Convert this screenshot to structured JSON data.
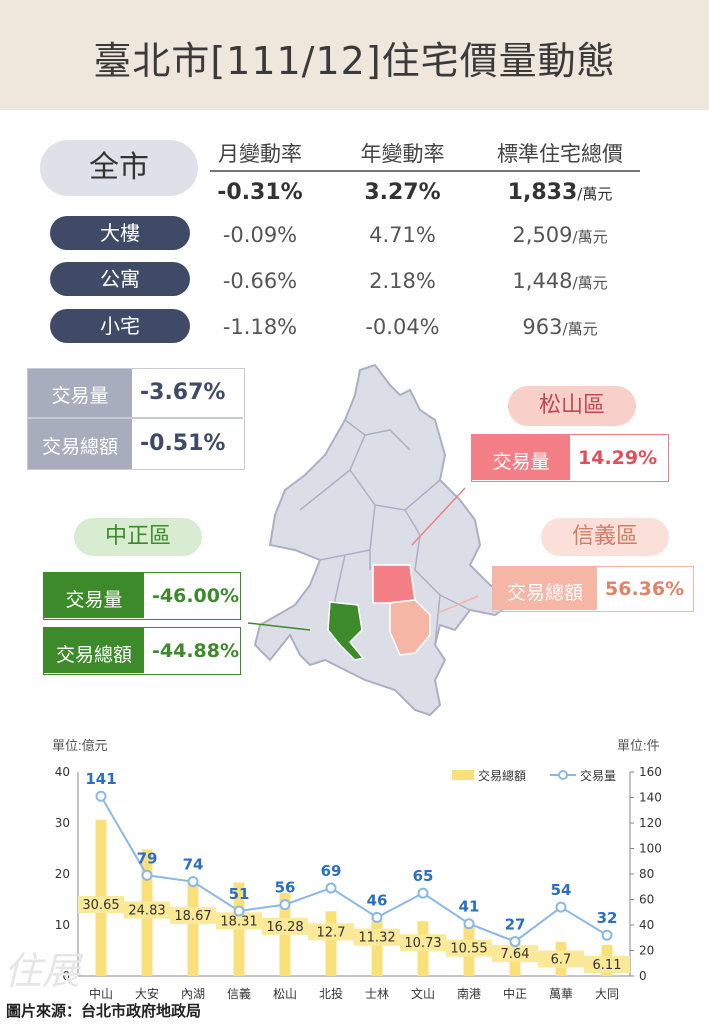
{
  "header": {
    "title": "臺北市[111/12]住宅價量動態"
  },
  "summary": {
    "columns": [
      "月變動率",
      "年變動率",
      "標準住宅總價"
    ],
    "unit_wan": "/萬元",
    "rows": [
      {
        "name": "全市",
        "monthly": "-0.31%",
        "yearly": "3.27%",
        "price": "1,833"
      },
      {
        "name": "大樓",
        "monthly": "-0.09%",
        "yearly": "4.71%",
        "price": "2,509"
      },
      {
        "name": "公寓",
        "monthly": "-0.66%",
        "yearly": "2.18%",
        "price": "1,448"
      },
      {
        "name": "小宅",
        "monthly": "-1.18%",
        "yearly": "-0.04%",
        "price": "963"
      }
    ]
  },
  "city_stats": {
    "volume_label": "交易量",
    "volume_value": "-3.67%",
    "amount_label": "交易總額",
    "amount_value": "-0.51%"
  },
  "songshan": {
    "name": "松山區",
    "label": "交易量",
    "value": "14.29%",
    "color": "#f47f86"
  },
  "xinyi": {
    "name": "信義區",
    "label": "交易總額",
    "value": "56.36%",
    "color": "#f5b6a6"
  },
  "zhongzheng": {
    "name": "中正區",
    "volume_label": "交易量",
    "volume_value": "-46.00%",
    "amount_label": "交易總額",
    "amount_value": "-44.88%",
    "color": "#3d8a2a"
  },
  "chart_data": {
    "type": "bar",
    "left_unit": "單位:億元",
    "right_unit": "單位:件",
    "categories": [
      "中山",
      "大安",
      "內湖",
      "信義",
      "松山",
      "北投",
      "士林",
      "文山",
      "南港",
      "中正",
      "萬華",
      "大同"
    ],
    "series": [
      {
        "name": "交易總額",
        "type": "bar",
        "axis": "left",
        "color": "#f9e07a",
        "values": [
          30.65,
          24.83,
          18.67,
          18.31,
          16.28,
          12.7,
          11.32,
          10.73,
          10.55,
          7.64,
          6.7,
          6.11
        ]
      },
      {
        "name": "交易量",
        "type": "line",
        "axis": "right",
        "color": "#8ab8e6",
        "values": [
          141,
          79,
          74,
          51,
          56,
          69,
          46,
          65,
          41,
          27,
          54,
          32
        ]
      }
    ],
    "y_left": {
      "min": 0,
      "max": 40,
      "ticks": [
        0,
        10,
        20,
        30,
        40
      ]
    },
    "y_right": {
      "min": 0,
      "max": 160,
      "ticks": [
        0,
        20,
        40,
        60,
        80,
        100,
        120,
        140,
        160
      ]
    },
    "legend_position": "top-right"
  },
  "footer": {
    "source": "圖片來源：台北市政府地政局",
    "watermark": "住展"
  }
}
